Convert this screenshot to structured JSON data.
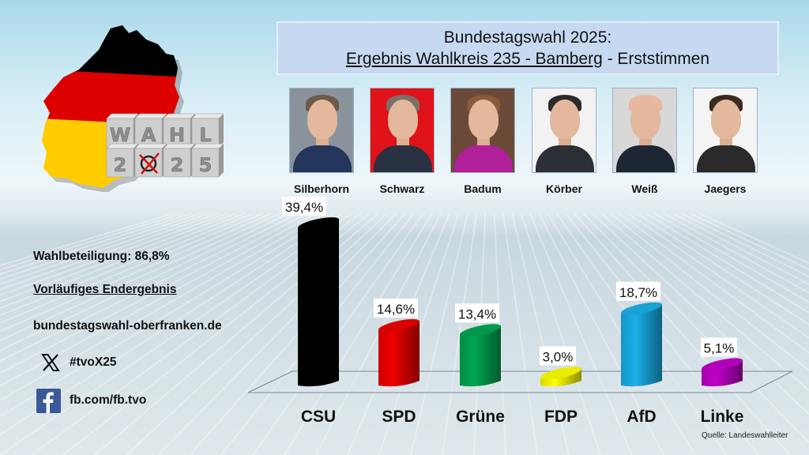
{
  "header": {
    "title_line1": "Bundestagswahl 2025:",
    "title_line2_underlined": "Ergebnis Wahlkreis 235 - Bamberg",
    "title_line2_rest": " - Erststimmen"
  },
  "logo": {
    "cube_row1": [
      "W",
      "A",
      "H",
      "L"
    ],
    "cube_row2": [
      "2",
      "✗",
      "2",
      "5"
    ],
    "flag_colors": [
      "#000000",
      "#dd0000",
      "#ffcc00"
    ]
  },
  "candidates": [
    {
      "name": "Silberhorn",
      "bg": "#8a939b",
      "hair": "#6d5a48",
      "suit": "#24365c"
    },
    {
      "name": "Schwarz",
      "bg": "#e0121a",
      "hair": "#7b7068",
      "suit": "#2a3140"
    },
    {
      "name": "Badum",
      "bg": "#6b4a3a",
      "hair": "#8a5a3a",
      "suit": "#b0209a"
    },
    {
      "name": "Körber",
      "bg": "#f2f2f2",
      "hair": "#2b2b2b",
      "suit": "#2c2f36"
    },
    {
      "name": "Weiß",
      "bg": "#d8d8d8",
      "hair": "#e8b8a0",
      "suit": "#1e2533"
    },
    {
      "name": "Jaegers",
      "bg": "#f4f4f4",
      "hair": "#3a2a20",
      "suit": "#2a2a2a"
    }
  ],
  "info": {
    "turnout": "Wahlbeteiligung: 86,8%",
    "status": "Vorläufiges Endergebnis",
    "website": "bundestagswahl-oberfranken.de",
    "x_handle": "#tvoX25",
    "facebook": "fb.com/fb.tvo",
    "x_icon": "x-logo-icon",
    "fb_icon": "facebook-icon"
  },
  "source": "Quelle: Landeswahlleiter",
  "chart_data": {
    "type": "bar",
    "title": "Bundestagswahl 2025: Ergebnis Wahlkreis 235 - Bamberg - Erststimmen",
    "xlabel": "",
    "ylabel": "",
    "ylim": [
      0,
      40
    ],
    "grid": false,
    "categories": [
      "CSU",
      "SPD",
      "Grüne",
      "FDP",
      "AfD",
      "Linke"
    ],
    "values": [
      39.4,
      14.6,
      13.4,
      3.0,
      18.7,
      5.1
    ],
    "labels": [
      "39,4%",
      "14,6%",
      "13,4%",
      "3,0%",
      "18,7%",
      "5,1%"
    ],
    "colors": [
      "#000000",
      "#ee0000",
      "#00a651",
      "#ffff00",
      "#1ab0e8",
      "#c000c8"
    ]
  }
}
